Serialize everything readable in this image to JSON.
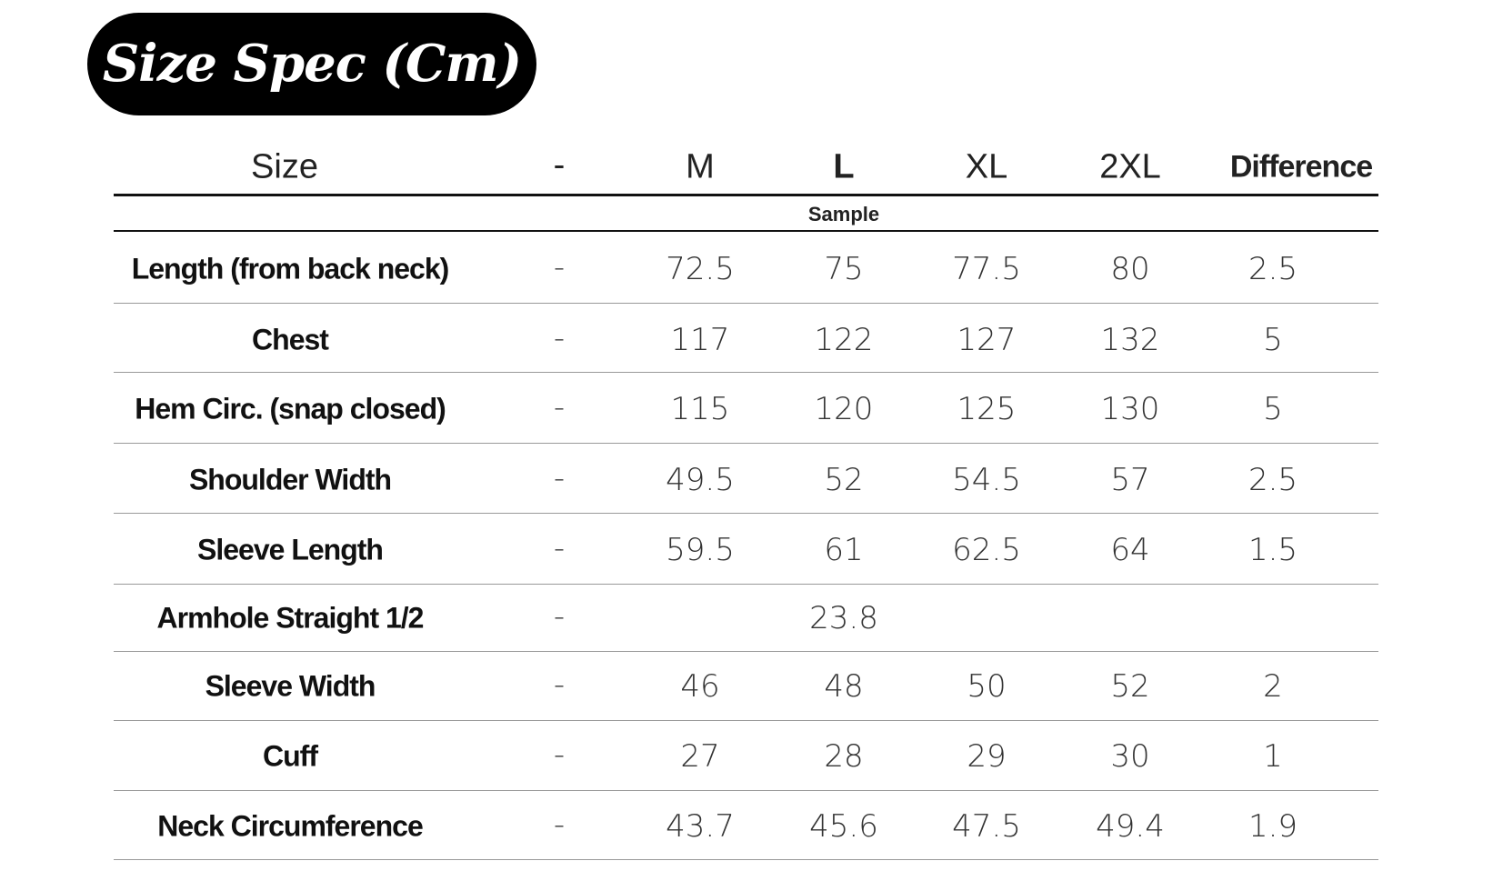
{
  "title": "Size Spec (Cm)",
  "table": {
    "header": {
      "size": "Size",
      "sep": "-",
      "columns": [
        "M",
        "L",
        "XL",
        "2XL",
        "Difference"
      ]
    },
    "sample_label": "Sample",
    "rows": [
      {
        "label": "Length (from back neck)",
        "sep": "-",
        "values": {
          "M": 72.5,
          "L": 75,
          "XL": 77.5,
          "2XL": 80,
          "Difference": 2.5
        }
      },
      {
        "label": "Chest",
        "sep": "-",
        "values": {
          "M": 117,
          "L": 122,
          "XL": 127,
          "2XL": 132,
          "Difference": 5
        }
      },
      {
        "label": "Hem Circ. (snap closed)",
        "sep": "-",
        "values": {
          "M": 115,
          "L": 120,
          "XL": 125,
          "2XL": 130,
          "Difference": 5
        }
      },
      {
        "label": "Shoulder Width",
        "sep": "-",
        "values": {
          "M": 49.5,
          "L": 52,
          "XL": 54.5,
          "2XL": 57,
          "Difference": 2.5
        }
      },
      {
        "label": "Sleeve Length",
        "sep": "-",
        "values": {
          "M": 59.5,
          "L": 61,
          "XL": 62.5,
          "2XL": 64,
          "Difference": 1.5
        }
      },
      {
        "label": "Armhole Straight 1/2",
        "sep": "-",
        "values": {
          "L": 23.8
        }
      },
      {
        "label": "Sleeve Width",
        "sep": "-",
        "values": {
          "M": 46,
          "L": 48,
          "XL": 50,
          "2XL": 52,
          "Difference": 2
        }
      },
      {
        "label": "Cuff",
        "sep": "-",
        "values": {
          "M": 27,
          "L": 28,
          "XL": 29,
          "2XL": 30,
          "Difference": 1
        }
      },
      {
        "label": "Neck Circumference",
        "sep": "-",
        "values": {
          "M": 43.7,
          "L": 45.6,
          "XL": 47.5,
          "2XL": 49.4,
          "Difference": 1.9
        }
      }
    ]
  }
}
